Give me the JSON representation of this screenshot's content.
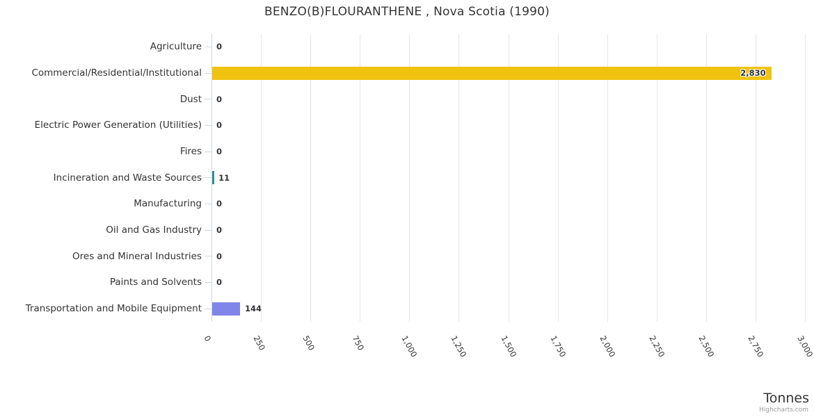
{
  "chart_data": {
    "type": "bar",
    "orientation": "horizontal",
    "title": "BENZO(B)FLOURANTHENE , Nova Scotia (1990)",
    "categories": [
      "Agriculture",
      "Commercial/Residential/Institutional",
      "Dust",
      "Electric Power Generation (Utilities)",
      "Fires",
      "Incineration and Waste Sources",
      "Manufacturing",
      "Oil and Gas Industry",
      "Ores and Mineral Industries",
      "Paints and Solvents",
      "Transportation and Mobile Equipment"
    ],
    "values": [
      0,
      2830,
      0,
      0,
      0,
      11,
      0,
      0,
      0,
      0,
      144
    ],
    "value_labels": [
      "0",
      "2,830",
      "0",
      "0",
      "0",
      "11",
      "0",
      "0",
      "0",
      "0",
      "144"
    ],
    "bar_colors": [
      null,
      "#f0c311",
      null,
      null,
      null,
      "#2b908f",
      null,
      null,
      null,
      null,
      "#8085e9"
    ],
    "xlabel": "Tonnes",
    "xlim": [
      0,
      3000
    ],
    "xticks": [
      0,
      250,
      500,
      750,
      1000,
      1250,
      1500,
      1750,
      2000,
      2250,
      2500,
      2750,
      3000
    ],
    "xtick_labels": [
      "0",
      "250",
      "500",
      "750",
      "1,000",
      "1,250",
      "1,500",
      "1,750",
      "2,000",
      "2,250",
      "2,500",
      "2,750",
      "3,000"
    ],
    "grid": true,
    "legend": false
  },
  "credits": {
    "label": "Highcharts.com"
  },
  "colors": {
    "background": "#ffffff",
    "grid": "#e6e6e6",
    "axis": "#ccd6eb",
    "text": "#333333",
    "credits_text": "#999999",
    "bar_yellow": "#f0c311",
    "bar_teal": "#2b908f",
    "bar_purple": "#8085e9"
  }
}
